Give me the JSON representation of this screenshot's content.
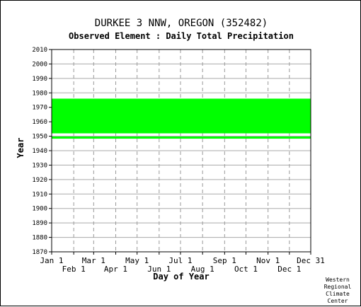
{
  "title": "DURKEE 3 NNW, OREGON   (352482)",
  "subtitle": "Observed Element : Daily Total Precipitation",
  "credit": [
    "Western",
    "Regional",
    "Climate",
    "Center"
  ],
  "chart_data": {
    "type": "scatter",
    "xlabel": "Day of Year",
    "ylabel": "Year",
    "ylim": [
      1870,
      2010
    ],
    "y_ticks": [
      1870,
      1880,
      1890,
      1900,
      1910,
      1920,
      1930,
      1940,
      1950,
      1960,
      1970,
      1980,
      1990,
      2000,
      2010
    ],
    "x_ticks_upper": [
      {
        "label": "Jan 1",
        "day": 1
      },
      {
        "label": "Mar 1",
        "day": 60
      },
      {
        "label": "May 1",
        "day": 121
      },
      {
        "label": "Jul 1",
        "day": 182
      },
      {
        "label": "Sep 1",
        "day": 244
      },
      {
        "label": "Nov 1",
        "day": 305
      },
      {
        "label": "Dec 31",
        "day": 365
      }
    ],
    "x_ticks_lower": [
      {
        "label": "Feb 1",
        "day": 32
      },
      {
        "label": "Apr 1",
        "day": 91
      },
      {
        "label": "Jun 1",
        "day": 152
      },
      {
        "label": "Aug 1",
        "day": 213
      },
      {
        "label": "Oct 1",
        "day": 274
      },
      {
        "label": "Dec 1",
        "day": 335
      }
    ],
    "grid": true,
    "series_color": "#00ff00",
    "observed_periods": [
      {
        "day_start": 1,
        "day_end": 365,
        "year_start": 1948.3,
        "year_end": 1949.8
      },
      {
        "day_start": 1,
        "day_end": 365,
        "year_start": 1952.0,
        "year_end": 1976.0
      }
    ]
  }
}
